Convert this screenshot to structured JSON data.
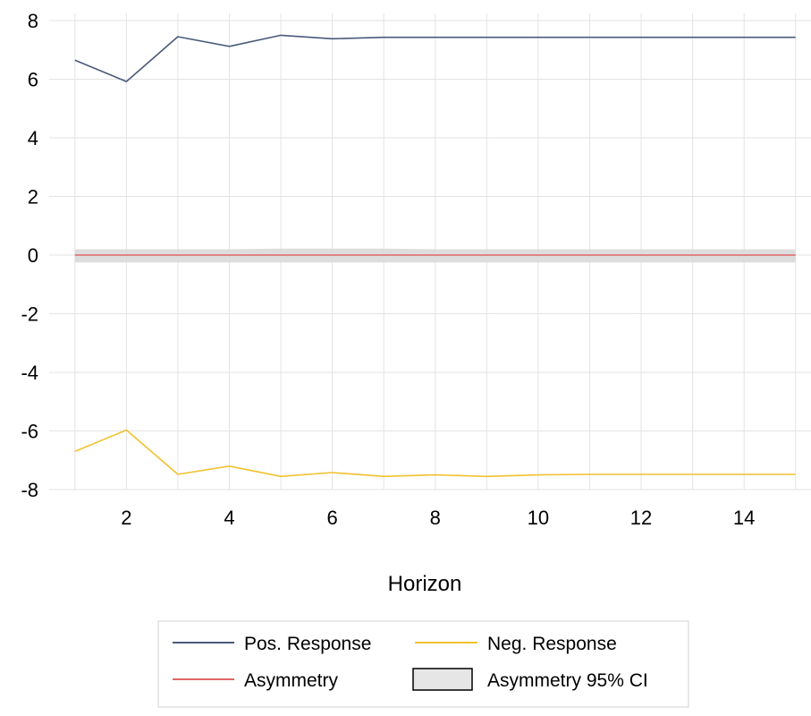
{
  "chart_data": {
    "type": "line",
    "xlabel": "Horizon",
    "ylabel": "",
    "xlim": [
      0.5,
      15.3
    ],
    "ylim": [
      -8,
      8
    ],
    "xticks": [
      2,
      4,
      6,
      8,
      10,
      12,
      14
    ],
    "yticks": [
      8,
      6,
      4,
      2,
      0,
      -2,
      -4,
      -6,
      -8
    ],
    "grid": true,
    "legend_position": "bottom",
    "x": [
      1,
      2,
      3,
      4,
      5,
      6,
      7,
      8,
      9,
      10,
      11,
      12,
      13,
      14,
      15
    ],
    "series": [
      {
        "name": "Pos. Response",
        "color": "#4a5a7a",
        "values": [
          6.65,
          5.92,
          7.45,
          7.12,
          7.5,
          7.38,
          7.43,
          7.43,
          7.43,
          7.43,
          7.43,
          7.43,
          7.43,
          7.43,
          7.43
        ]
      },
      {
        "name": "Neg. Response",
        "color": "#f2c12e",
        "values": [
          -6.7,
          -5.97,
          -7.48,
          -7.2,
          -7.55,
          -7.42,
          -7.55,
          -7.5,
          -7.55,
          -7.5,
          -7.48,
          -7.48,
          -7.48,
          -7.48,
          -7.48
        ]
      },
      {
        "name": "Asymmetry",
        "color": "#e06666",
        "values": [
          0,
          0,
          0,
          0,
          0,
          0,
          0,
          0,
          0,
          0,
          0,
          0,
          0,
          0,
          0
        ]
      }
    ],
    "band": {
      "name": "Asymmetry 95% CI",
      "color": "#d9d9d9",
      "lower": [
        -0.25,
        -0.25,
        -0.25,
        -0.25,
        -0.25,
        -0.25,
        -0.25,
        -0.25,
        -0.25,
        -0.25,
        -0.25,
        -0.25,
        -0.25,
        -0.25,
        -0.25
      ],
      "upper": [
        0.2,
        0.2,
        0.2,
        0.2,
        0.22,
        0.22,
        0.22,
        0.2,
        0.2,
        0.2,
        0.2,
        0.2,
        0.2,
        0.2,
        0.2
      ]
    }
  },
  "legend": {
    "items": [
      {
        "label": "Pos. Response",
        "color": "#4a5a7a",
        "kind": "line"
      },
      {
        "label": "Neg. Response",
        "color": "#f2c12e",
        "kind": "line"
      },
      {
        "label": "Asymmetry",
        "color": "#e06666",
        "kind": "line"
      },
      {
        "label": "Asymmetry 95% CI",
        "color": "#e6e6e6",
        "kind": "box"
      }
    ]
  }
}
